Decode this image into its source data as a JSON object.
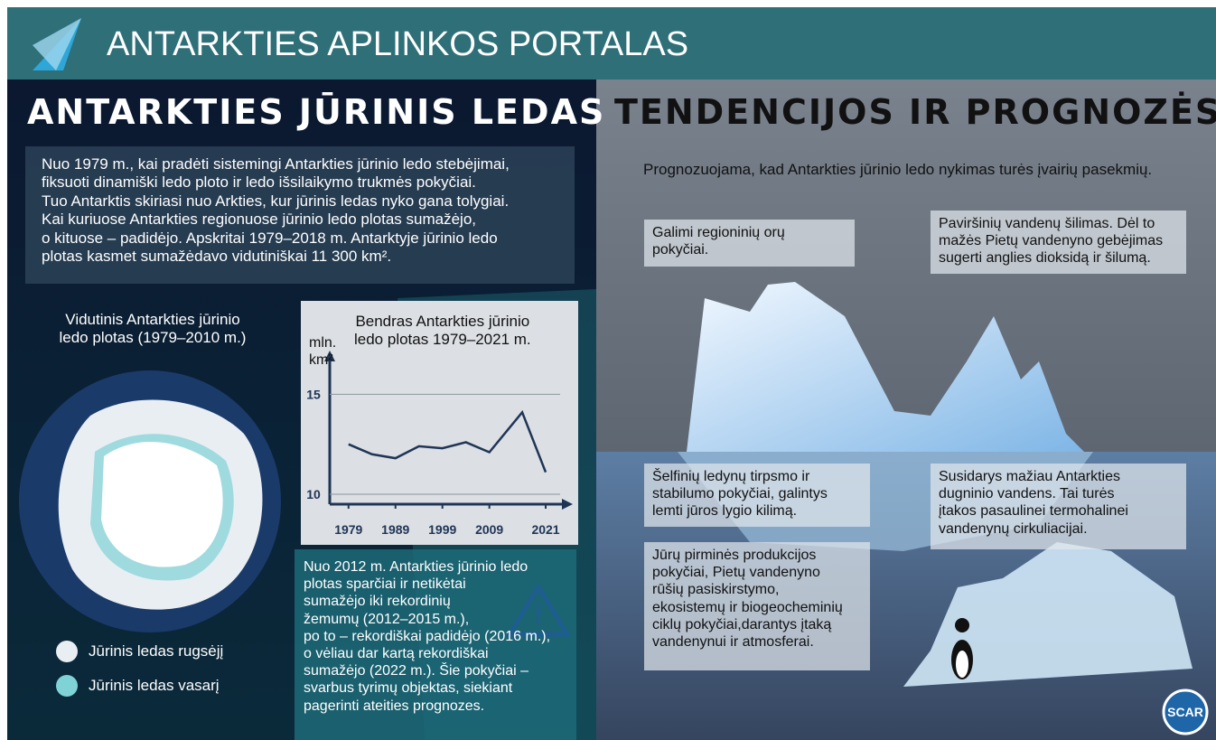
{
  "header": {
    "title": "ANTARKTIES APLINKOS PORTALAS"
  },
  "left": {
    "title": "ANTARKTIES JŪRINIS LEDAS",
    "intro": [
      "Nuo 1979 m., kai pradėti sistemingi Antarkties jūrinio ledo stebėjimai,",
      "fiksuoti dinamiški ledo ploto ir ledo išsilaikymo trukmės pokyčiai.",
      "Tuo Antarktis skiriasi nuo Arkties, kur jūrinis ledas nyko gana tolygiai.",
      "Kai kuriuose Antarkties regionuose jūrinio ledo plotas sumažėjo,",
      "o kituose – padidėjo. Apskritai 1979–2018 m. Antarktyje jūrinio ledo",
      "plotas kasmet sumažėdavo vidutiniškai 11 300 km²."
    ],
    "map_title": [
      "Vidutinis Antarkties jūrinio",
      "ledo plotas (1979–2010 m.)"
    ],
    "legend": [
      {
        "label": "Jūrinis ledas rugsėjį",
        "color": "#e9eef3"
      },
      {
        "label": "Jūrinis ledas vasarį",
        "color": "#7fd2d6"
      }
    ],
    "warning": [
      "Nuo 2012 m. Antarkties jūrinio ledo",
      "plotas sparčiai ir netikėtai",
      "sumažėjo iki rekordinių",
      "žemumų (2012–2015 m.),",
      "po to – rekordiškai padidėjo (2016 m.),",
      "o vėliau dar kartą rekordiškai",
      "sumažėjo (2022 m.). Šie pokyčiai –",
      "svarbus tyrimų objektas, siekiant",
      "pagerinti ateities prognozes."
    ]
  },
  "chart_data": {
    "type": "line",
    "title": [
      "Bendras Antarkties jūrinio",
      "ledo plotas 1979–2021 m."
    ],
    "y_label": [
      "mln.",
      "km²"
    ],
    "x": [
      1979,
      1984,
      1989,
      1994,
      1999,
      2004,
      2009,
      2016,
      2021
    ],
    "values": [
      12.5,
      12.0,
      11.8,
      12.4,
      12.3,
      12.6,
      12.1,
      14.1,
      11.1
    ],
    "color": "#1f3556",
    "xlim": [
      1975,
      2026
    ],
    "xticks": [
      1979,
      1989,
      1999,
      2009,
      2021
    ],
    "ylim": [
      9.5,
      17.1
    ],
    "yticks": [
      10,
      15
    ],
    "grid": true
  },
  "right": {
    "title": "TENDENCIJOS IR PROGNOZĖS",
    "subtitle": "Prognozuojama, kad Antarkties jūrinio ledo nykimas turės įvairių pasekmių.",
    "boxes": [
      [
        "Galimi regioninių orų",
        "pokyčiai."
      ],
      [
        "Paviršinių vandenų šilimas. Dėl to",
        "mažės Pietų vandenyno gebėjimas",
        "sugerti anglies dioksidą ir šilumą."
      ],
      [
        "Šelfinių ledynų tirpsmo ir",
        "stabilumo pokyčiai, galintys",
        "lemti jūros lygio kilimą."
      ],
      [
        "Susidarys mažiau Antarkties",
        "dugninio vandens. Tai turės",
        "įtakos pasaulinei termohalinei",
        "vandenynų cirkuliacijai."
      ],
      [
        "Jūrų pirminės produkcijos",
        "pokyčiai, Pietų vandenyno",
        "rūšių pasiskirstymo,",
        "ekosistemų ir biogeocheminių",
        "ciklų pokyčiai,darantys įtaką",
        "vandenynui ir atmosferai."
      ]
    ],
    "logo": "SCAR"
  }
}
